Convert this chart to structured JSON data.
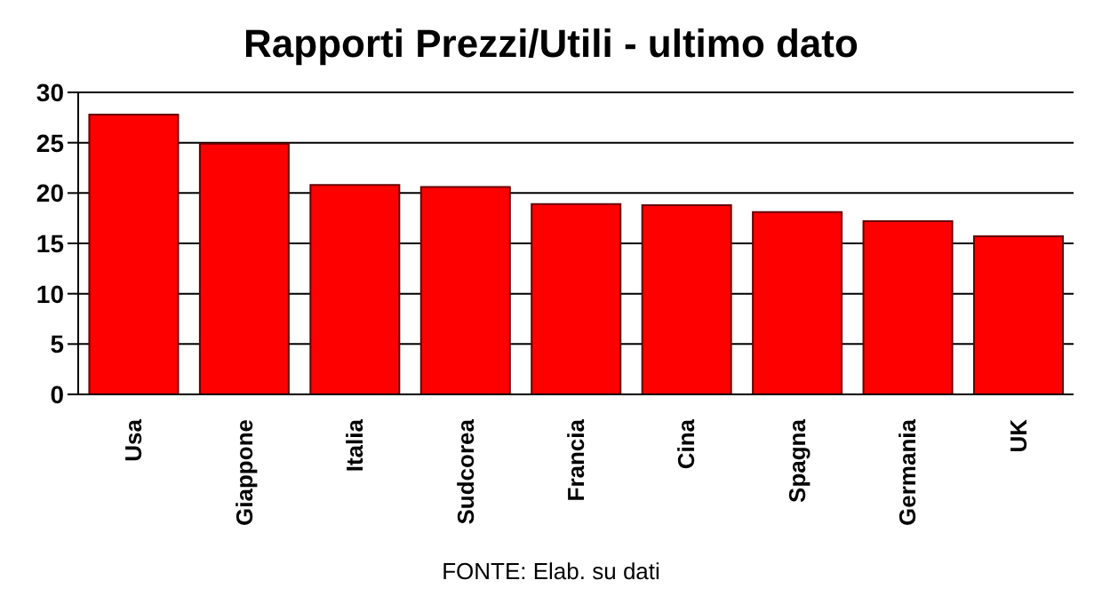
{
  "chart_data": {
    "type": "bar",
    "title": "Rapporti Prezzi/Utili - ultimo dato",
    "categories": [
      "Usa",
      "Giappone",
      "Italia",
      "Sudcorea",
      "Francia",
      "Cina",
      "Spagna",
      "Germania",
      "UK"
    ],
    "values": [
      27.8,
      24.9,
      20.8,
      20.6,
      18.9,
      18.8,
      18.1,
      17.2,
      15.7
    ],
    "color": "#ff0000",
    "ylim": [
      0,
      30
    ],
    "yticks": [
      0,
      5,
      10,
      15,
      20,
      25,
      30
    ],
    "grid": "y",
    "annotations": [
      "FONTE: Elab. su dati"
    ]
  }
}
